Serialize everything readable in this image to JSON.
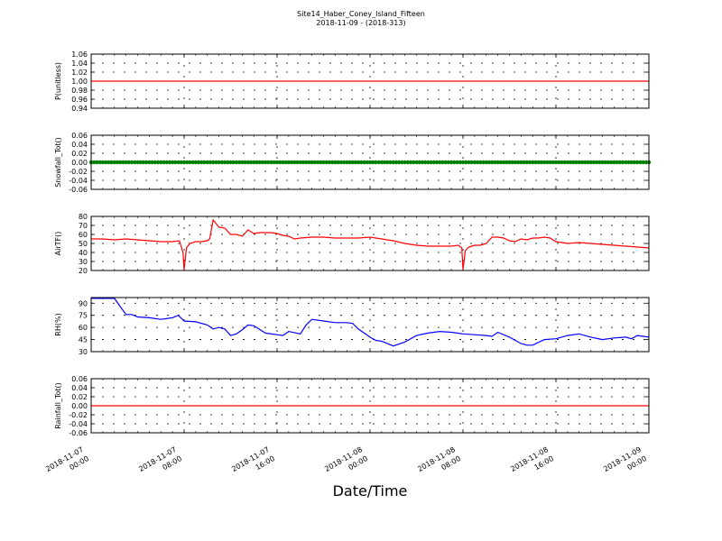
{
  "figure": {
    "title": "Site14_Haber_Coney_Island_Fifteen",
    "subtitle": "2018-11-09 - (2018-313)",
    "xlabel": "Date/Time"
  },
  "chart_data": [
    {
      "type": "line",
      "ylabel": "P(unitless)",
      "ylim": [
        0.94,
        1.06
      ],
      "yticks": [
        "0.94",
        "0.96",
        "0.98",
        "1.00",
        "1.02",
        "1.04",
        "1.06"
      ],
      "color": "#ff0000",
      "grid": true,
      "series": [
        {
          "x": [
            0,
            48
          ],
          "values": [
            1.0,
            1.0
          ]
        }
      ]
    },
    {
      "type": "line",
      "ylabel": "Snowfall_Tot()",
      "ylim": [
        -0.06,
        0.06
      ],
      "yticks": [
        "-0.06",
        "-0.04",
        "-0.02",
        "0.00",
        "0.02",
        "0.04",
        "0.06"
      ],
      "color": "#008000",
      "grid": true,
      "markers": true,
      "series": [
        {
          "x": [
            0,
            48
          ],
          "values": [
            0.0,
            0.0
          ]
        }
      ]
    },
    {
      "type": "line",
      "ylabel": "AirTF()",
      "ylim": [
        20,
        80
      ],
      "yticks": [
        "20",
        "30",
        "40",
        "50",
        "60",
        "70",
        "80"
      ],
      "color": "#ff0000",
      "grid": true,
      "series": [
        {
          "x": [
            0,
            1,
            2,
            3,
            4,
            5,
            6,
            7,
            7.6,
            7.9,
            8.0,
            8.2,
            8.5,
            9,
            9.5,
            10,
            10.2,
            10.5,
            11,
            11.5,
            12,
            12.5,
            13,
            13.5,
            14,
            14.5,
            15,
            15.5,
            16,
            16.5,
            17,
            17.5,
            18,
            19,
            20,
            21,
            22,
            23,
            24,
            25,
            26,
            27,
            28,
            29,
            30,
            31,
            31.6,
            31.9,
            32.0,
            32.2,
            32.5,
            33,
            33.5,
            34,
            34.5,
            35,
            35.5,
            36,
            36.5,
            37,
            37.5,
            38,
            38.5,
            39,
            39.5,
            40,
            41,
            42,
            43,
            44,
            45,
            46,
            47,
            48
          ],
          "values": [
            55,
            55,
            54,
            55,
            54,
            53,
            52,
            52,
            53,
            40,
            21,
            45,
            50,
            52,
            52,
            53,
            55,
            76,
            68,
            67,
            60,
            60,
            58,
            65,
            61,
            62,
            62,
            62,
            61,
            59,
            58,
            55,
            56,
            57,
            57,
            56,
            56,
            56,
            57,
            55,
            53,
            50,
            48,
            47,
            47,
            47,
            48,
            45,
            21,
            42,
            46,
            48,
            48,
            50,
            57,
            57,
            56,
            53,
            52,
            55,
            54,
            56,
            56,
            57,
            56,
            52,
            50,
            51,
            50,
            49,
            48,
            47,
            46,
            45
          ]
        }
      ]
    },
    {
      "type": "line",
      "ylabel": "RH(%)",
      "ylim": [
        30,
        97
      ],
      "yticks": [
        "30",
        "45",
        "60",
        "75",
        "90"
      ],
      "color": "#0000ff",
      "grid": true,
      "series": [
        {
          "x": [
            0,
            1,
            2,
            2.5,
            3,
            3.5,
            4,
            5,
            6,
            7,
            7.5,
            8,
            9,
            10,
            10.5,
            11,
            11.5,
            12,
            12.5,
            13,
            13.5,
            14,
            15,
            16,
            16.5,
            17,
            18,
            18.5,
            19,
            20,
            21,
            22,
            22.5,
            23,
            24,
            24.5,
            25,
            26,
            27,
            28,
            29,
            30,
            31,
            31.5,
            32,
            33,
            34,
            34.5,
            35,
            36,
            36.5,
            37,
            37.5,
            38,
            39,
            40,
            41,
            42,
            43,
            44,
            45,
            46,
            46.5,
            47,
            48
          ],
          "values": [
            96,
            96,
            96,
            86,
            76,
            76,
            73,
            72,
            70,
            72,
            75,
            68,
            67,
            63,
            58,
            60,
            58,
            50,
            52,
            57,
            63,
            62,
            53,
            51,
            50,
            55,
            52,
            63,
            70,
            68,
            66,
            66,
            65,
            58,
            48,
            44,
            43,
            37,
            42,
            50,
            53,
            55,
            54,
            53,
            52,
            51,
            50,
            49,
            54,
            48,
            44,
            40,
            38,
            38,
            45,
            46,
            50,
            52,
            48,
            45,
            47,
            48,
            46,
            50,
            48
          ]
        }
      ]
    },
    {
      "type": "line",
      "ylabel": "Rainfall_Tot()",
      "ylim": [
        -0.06,
        0.06
      ],
      "yticks": [
        "-0.06",
        "-0.04",
        "-0.02",
        "0.00",
        "0.02",
        "0.04",
        "0.06"
      ],
      "color": "#ff0000",
      "grid": true,
      "series": [
        {
          "x": [
            0,
            48
          ],
          "values": [
            0.0,
            0.0
          ]
        }
      ]
    }
  ],
  "x_axis": {
    "range_hours": [
      0,
      48
    ],
    "tick_hours": [
      0,
      8,
      16,
      24,
      32,
      40,
      48
    ],
    "tick_labels": [
      [
        "2018-11-07",
        "00:00"
      ],
      [
        "2018-11-07",
        "08:00"
      ],
      [
        "2018-11-07",
        "16:00"
      ],
      [
        "2018-11-08",
        "00:00"
      ],
      [
        "2018-11-08",
        "08:00"
      ],
      [
        "2018-11-08",
        "16:00"
      ],
      [
        "2018-11-09",
        "00:00"
      ]
    ]
  }
}
